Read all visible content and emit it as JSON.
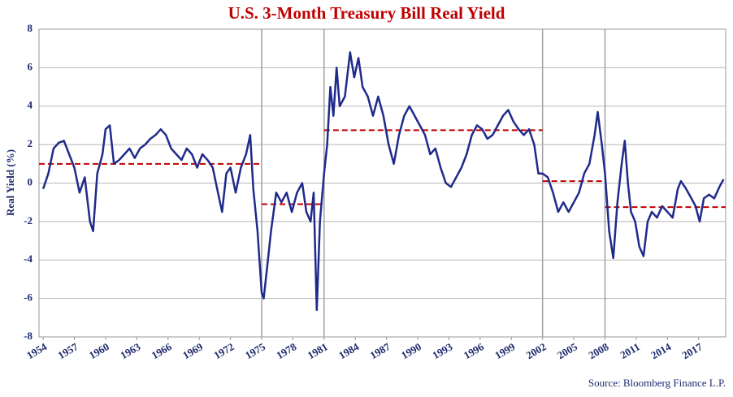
{
  "chart_data": {
    "type": "line",
    "title": "U.S. 3-Month Treasury Bill Real Yield",
    "y_label": "Real Yield  (%)",
    "source": "Source: Bloomberg Finance L.P.",
    "color": "#1f2a8a",
    "grid": true,
    "xlim": [
      1953.6,
      2019.6
    ],
    "ylim": [
      -8,
      8
    ],
    "yticks": [
      -8,
      -6,
      -4,
      -2,
      0,
      2,
      4,
      6,
      8
    ],
    "xticks": [
      1954,
      1957,
      1960,
      1963,
      1966,
      1969,
      1972,
      1975,
      1978,
      1981,
      1984,
      1987,
      1990,
      1993,
      1996,
      1999,
      2002,
      2005,
      2008,
      2011,
      2014,
      2017
    ],
    "dividers": [
      1975,
      1981,
      2002,
      2008
    ],
    "averages": [
      {
        "start": 1953.6,
        "end": 1975,
        "value": 1.0
      },
      {
        "start": 1975,
        "end": 1981,
        "value": -1.1
      },
      {
        "start": 1981,
        "end": 2002,
        "value": 2.75
      },
      {
        "start": 2002,
        "end": 2008,
        "value": 0.1
      },
      {
        "start": 2008,
        "end": 2019.6,
        "value": -1.25
      }
    ],
    "average_color": "#c00000",
    "x": [
      1954.0,
      1954.5,
      1955.0,
      1955.5,
      1956.0,
      1956.5,
      1957.0,
      1957.5,
      1958.0,
      1958.5,
      1958.8,
      1959.2,
      1959.7,
      1960.0,
      1960.4,
      1960.8,
      1961.3,
      1961.8,
      1962.3,
      1962.8,
      1963.3,
      1963.8,
      1964.3,
      1964.8,
      1965.3,
      1965.8,
      1966.3,
      1966.8,
      1967.3,
      1967.8,
      1968.3,
      1968.8,
      1969.3,
      1969.8,
      1970.3,
      1970.8,
      1971.2,
      1971.6,
      1972.0,
      1972.5,
      1973.0,
      1973.5,
      1973.9,
      1974.2,
      1974.6,
      1975.0,
      1975.2,
      1975.5,
      1975.9,
      1976.4,
      1976.9,
      1977.4,
      1977.9,
      1978.4,
      1978.9,
      1979.3,
      1979.7,
      1980.0,
      1980.3,
      1980.6,
      1981.0,
      1981.3,
      1981.6,
      1981.9,
      1982.2,
      1982.5,
      1983.0,
      1983.5,
      1983.9,
      1984.3,
      1984.7,
      1985.2,
      1985.7,
      1986.2,
      1986.7,
      1987.2,
      1987.7,
      1988.2,
      1988.7,
      1989.2,
      1989.7,
      1990.2,
      1990.7,
      1991.2,
      1991.7,
      1992.2,
      1992.7,
      1993.2,
      1993.7,
      1994.2,
      1994.7,
      1995.2,
      1995.7,
      1996.2,
      1996.7,
      1997.2,
      1997.7,
      1998.2,
      1998.7,
      1999.2,
      1999.7,
      2000.2,
      2000.7,
      2001.2,
      2001.6,
      2002.0,
      2002.5,
      2003.0,
      2003.5,
      2004.0,
      2004.5,
      2005.0,
      2005.5,
      2006.0,
      2006.5,
      2007.0,
      2007.3,
      2007.7,
      2008.0,
      2008.4,
      2008.8,
      2009.2,
      2009.6,
      2009.9,
      2010.2,
      2010.5,
      2010.9,
      2011.3,
      2011.7,
      2012.1,
      2012.5,
      2013.0,
      2013.5,
      2014.0,
      2014.5,
      2015.0,
      2015.3,
      2015.8,
      2016.3,
      2016.7,
      2017.1,
      2017.5,
      2018.0,
      2018.5,
      2019.0,
      2019.4
    ],
    "values": [
      -0.3,
      0.5,
      1.8,
      2.1,
      2.2,
      1.5,
      0.8,
      -0.5,
      0.3,
      -2.0,
      -2.5,
      0.5,
      1.5,
      2.8,
      3.0,
      1.0,
      1.2,
      1.5,
      1.8,
      1.3,
      1.8,
      2.0,
      2.3,
      2.5,
      2.8,
      2.5,
      1.8,
      1.5,
      1.2,
      1.8,
      1.5,
      0.8,
      1.5,
      1.2,
      0.8,
      -0.5,
      -1.5,
      0.5,
      0.8,
      -0.5,
      0.8,
      1.5,
      2.5,
      -0.3,
      -2.5,
      -5.7,
      -6.0,
      -4.5,
      -2.5,
      -0.5,
      -1.0,
      -0.5,
      -1.5,
      -0.5,
      0.0,
      -1.5,
      -2.0,
      -0.5,
      -6.6,
      -2.0,
      0.5,
      2.0,
      5.0,
      3.5,
      6.0,
      4.0,
      4.5,
      6.8,
      5.5,
      6.5,
      5.0,
      4.5,
      3.5,
      4.5,
      3.5,
      2.0,
      1.0,
      2.5,
      3.5,
      4.0,
      3.5,
      3.0,
      2.5,
      1.5,
      1.8,
      0.8,
      0.0,
      -0.2,
      0.3,
      0.8,
      1.5,
      2.5,
      3.0,
      2.8,
      2.3,
      2.5,
      3.0,
      3.5,
      3.8,
      3.2,
      2.8,
      2.5,
      2.8,
      2.0,
      0.5,
      0.5,
      0.3,
      -0.5,
      -1.5,
      -1.0,
      -1.5,
      -1.0,
      -0.5,
      0.5,
      1.0,
      2.5,
      3.7,
      2.0,
      0.5,
      -2.5,
      -3.9,
      -1.0,
      1.0,
      2.2,
      0.0,
      -1.5,
      -2.0,
      -3.3,
      -3.8,
      -2.0,
      -1.5,
      -1.8,
      -1.2,
      -1.5,
      -1.8,
      -0.3,
      0.1,
      -0.3,
      -0.8,
      -1.2,
      -2.0,
      -0.8,
      -0.6,
      -0.8,
      -0.2,
      0.2
    ]
  }
}
